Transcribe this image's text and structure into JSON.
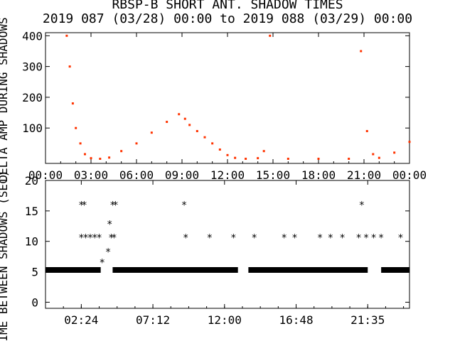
{
  "chart_data": [
    {
      "type": "scatter",
      "title": "RBSP-B SHORT ANT. SHADOW TIMES",
      "subtitle": "2019 087 (03/28) 00:00 to 2019 088 (03/29) 00:00",
      "ylabel": "DELTA AMP DURING SHADOWS",
      "xlim": [
        0,
        24
      ],
      "ylim": [
        -15,
        410
      ],
      "xticks": [
        "00:00",
        "03:00",
        "06:00",
        "09:00",
        "12:00",
        "15:00",
        "18:00",
        "21:00",
        "00:00"
      ],
      "yticks": [
        100,
        200,
        300,
        400
      ],
      "color": "#ff3300",
      "series": [
        {
          "points": [
            [
              1.4,
              400
            ],
            [
              1.6,
              300
            ],
            [
              1.8,
              180
            ],
            [
              2.0,
              100
            ],
            [
              2.3,
              50
            ],
            [
              2.6,
              15
            ],
            [
              3.0,
              2
            ],
            [
              3.6,
              0
            ],
            [
              4.2,
              4
            ],
            [
              5.0,
              25
            ],
            [
              6.0,
              50
            ],
            [
              7.0,
              85
            ],
            [
              8.0,
              120
            ],
            [
              8.8,
              145
            ],
            [
              9.2,
              130
            ],
            [
              9.5,
              110
            ],
            [
              10.0,
              90
            ],
            [
              10.5,
              70
            ],
            [
              11.0,
              50
            ],
            [
              11.5,
              30
            ],
            [
              12.0,
              12
            ],
            [
              12.5,
              3
            ],
            [
              13.2,
              0
            ],
            [
              14.0,
              2
            ],
            [
              14.4,
              25
            ],
            [
              14.8,
              400
            ],
            [
              16.0,
              0
            ],
            [
              18.0,
              0
            ],
            [
              20.0,
              0
            ],
            [
              20.8,
              350
            ],
            [
              21.2,
              90
            ],
            [
              21.6,
              15
            ],
            [
              22.0,
              3
            ],
            [
              23.0,
              20
            ],
            [
              24.0,
              55
            ]
          ]
        }
      ]
    },
    {
      "type": "scatter",
      "ylabel": "TIME BETWEEN SHADOWS (SEC)",
      "xlim": [
        0,
        24.4
      ],
      "ylim": [
        -1,
        20
      ],
      "xticks": [
        "02:24",
        "07:12",
        "12:00",
        "16:48",
        "21:35"
      ],
      "yticks": [
        0,
        5,
        10,
        15,
        20
      ],
      "marker": "*",
      "baseline_value": 5.3,
      "baseline_segments": [
        [
          0,
          3.7
        ],
        [
          4.5,
          12.9
        ],
        [
          13.6,
          21.6
        ],
        [
          22.5,
          24.4
        ]
      ],
      "points": [
        [
          2.4,
          16
        ],
        [
          2.6,
          16
        ],
        [
          2.4,
          10.6
        ],
        [
          2.7,
          10.6
        ],
        [
          3.0,
          10.6
        ],
        [
          3.3,
          10.6
        ],
        [
          3.6,
          10.6
        ],
        [
          3.8,
          6.5
        ],
        [
          4.5,
          16
        ],
        [
          4.7,
          16
        ],
        [
          4.3,
          12.8
        ],
        [
          4.2,
          8.3
        ],
        [
          4.4,
          10.6
        ],
        [
          4.6,
          10.6
        ],
        [
          9.3,
          16
        ],
        [
          9.4,
          10.6
        ],
        [
          11.0,
          10.6
        ],
        [
          12.6,
          10.6
        ],
        [
          14.0,
          10.6
        ],
        [
          16.0,
          10.6
        ],
        [
          16.7,
          10.6
        ],
        [
          18.4,
          10.6
        ],
        [
          19.1,
          10.6
        ],
        [
          19.9,
          10.6
        ],
        [
          21.0,
          10.6
        ],
        [
          21.2,
          16
        ],
        [
          21.5,
          10.6
        ],
        [
          22.0,
          10.6
        ],
        [
          22.5,
          10.6
        ],
        [
          23.8,
          10.6
        ]
      ]
    }
  ]
}
